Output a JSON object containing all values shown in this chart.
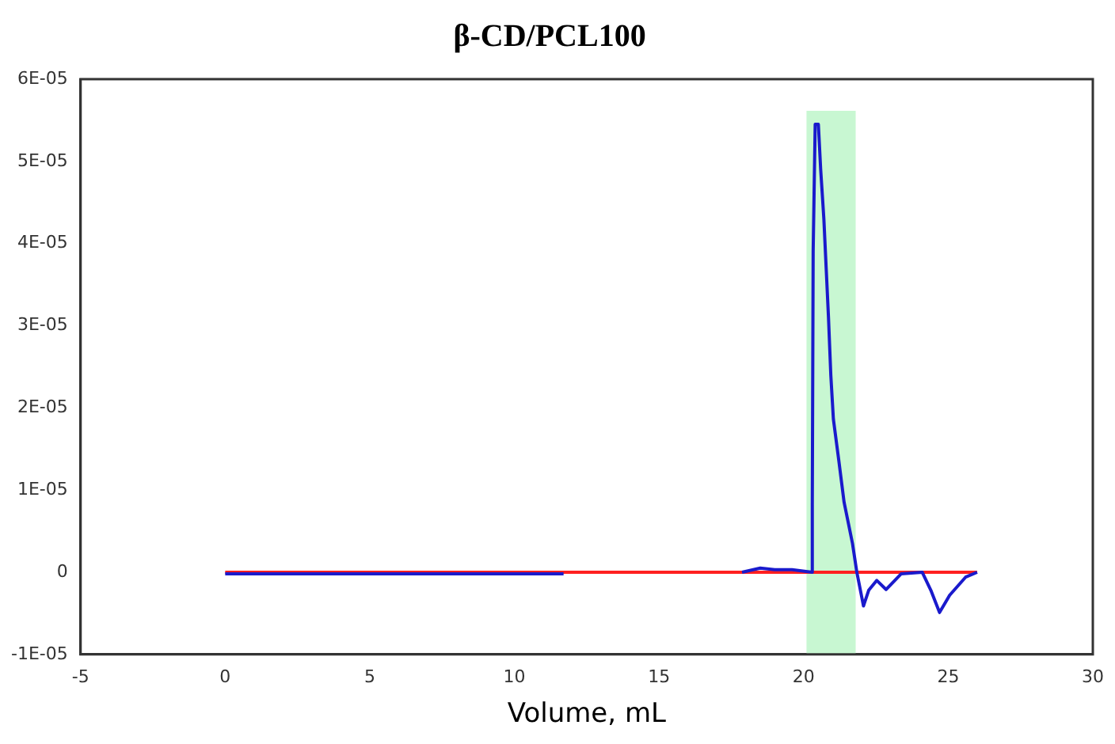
{
  "chart_data": {
    "type": "line",
    "title": "β-CD/PCL100",
    "xlabel": "Volume, mL",
    "xlim": [
      -5,
      30
    ],
    "xticks": [
      -5,
      0,
      5,
      10,
      15,
      20,
      25,
      30
    ],
    "ylim": [
      -1e-05,
      6e-05
    ],
    "yticks": [
      {
        "value": -1e-05,
        "label": "-1E-05"
      },
      0,
      {
        "value": 1e-05,
        "label": "1E-05"
      },
      {
        "value": 2e-05,
        "label": "2E-05"
      },
      {
        "value": 3e-05,
        "label": "3E-05"
      },
      {
        "value": 4e-05,
        "label": "4E-05"
      },
      {
        "value": 5e-05,
        "label": "5E-05"
      },
      {
        "value": 6e-05,
        "label": "6E-05"
      }
    ],
    "series": [
      {
        "color": "#1a1acc",
        "x": [
          0,
          11.7,
          14.8,
          17.87,
          18.5,
          19.0,
          19.6,
          20.3,
          20.3,
          20.33,
          20.4,
          20.51,
          20.59,
          20.7,
          20.78,
          20.86,
          20.94,
          21.03,
          21.22,
          21.4,
          21.69,
          21.84,
          22.07,
          22.25,
          22.53,
          22.85,
          23.37,
          24.1,
          24.4,
          24.7,
          25.05,
          25.6,
          26.0
        ],
        "values": [
          -2e-07,
          -2e-07,
          null,
          0,
          5e-07,
          3e-07,
          3e-07,
          0,
          8.2e-06,
          3.9e-05,
          5.45e-05,
          5.45e-05,
          4.9e-05,
          4.3e-05,
          3.7e-05,
          3.1e-05,
          2.4e-05,
          1.86e-05,
          1.35e-05,
          8.5e-06,
          3.5e-06,
          0,
          -4.1e-06,
          -2.2e-06,
          -1e-06,
          -2.1e-06,
          -2e-07,
          0,
          -2.2e-06,
          -4.9e-06,
          -2.8e-06,
          -6e-07,
          0
        ]
      },
      {
        "color": "#ff2020",
        "x": [
          0,
          26
        ],
        "values": [
          0,
          0
        ]
      }
    ],
    "bands": [
      {
        "axis": "x",
        "from": 20.1,
        "to": 21.8,
        "color": "#c8f7d2"
      }
    ],
    "grid": false,
    "legend": false,
    "marker": "none",
    "line_style": "solid"
  }
}
